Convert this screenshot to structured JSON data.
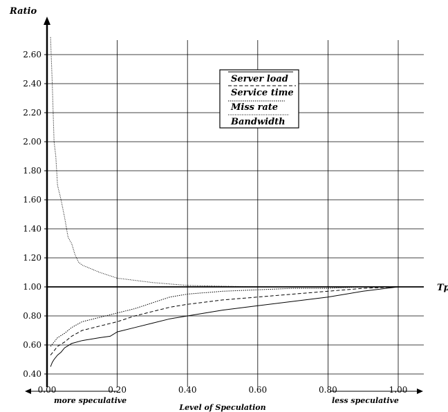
{
  "chart_data": {
    "type": "line",
    "title": "",
    "xlabel": "Level of Speculation",
    "ylabel": "Ratio",
    "x_axis_end_label": "Tp",
    "xlim": [
      0.0,
      1.0
    ],
    "ylim": [
      0.4,
      2.7
    ],
    "x_ticks": [
      "0.00",
      "0.20",
      "0.40",
      "0.60",
      "0.80",
      "1.00"
    ],
    "y_ticks": [
      "0.40",
      "0.60",
      "0.80",
      "1.00",
      "1.20",
      "1.40",
      "1.60",
      "1.80",
      "2.00",
      "2.20",
      "2.40",
      "2.60"
    ],
    "grid": true,
    "legend_position": "top-right",
    "annotations": {
      "left": "more speculative",
      "right": "less speculative"
    },
    "series": [
      {
        "name": "Server load",
        "style": "solid",
        "x": [
          0.01,
          0.015,
          0.02,
          0.03,
          0.04,
          0.05,
          0.07,
          0.1,
          0.15,
          0.18,
          0.2,
          0.25,
          0.3,
          0.35,
          0.4,
          0.5,
          0.6,
          0.7,
          0.8,
          0.9,
          1.0
        ],
        "y": [
          0.45,
          0.48,
          0.5,
          0.53,
          0.55,
          0.58,
          0.61,
          0.63,
          0.65,
          0.66,
          0.69,
          0.72,
          0.75,
          0.78,
          0.8,
          0.84,
          0.87,
          0.9,
          0.93,
          0.97,
          1.0
        ]
      },
      {
        "name": "Service time",
        "style": "dashed",
        "x": [
          0.01,
          0.02,
          0.03,
          0.05,
          0.07,
          0.1,
          0.15,
          0.2,
          0.25,
          0.3,
          0.35,
          0.4,
          0.5,
          0.6,
          0.7,
          0.8,
          0.9,
          1.0
        ],
        "y": [
          0.53,
          0.56,
          0.59,
          0.62,
          0.66,
          0.7,
          0.73,
          0.76,
          0.8,
          0.83,
          0.86,
          0.88,
          0.91,
          0.93,
          0.95,
          0.97,
          0.99,
          1.0
        ]
      },
      {
        "name": "Miss rate",
        "style": "dotted",
        "x": [
          0.01,
          0.02,
          0.03,
          0.05,
          0.07,
          0.1,
          0.15,
          0.2,
          0.25,
          0.3,
          0.35,
          0.4,
          0.5,
          0.6,
          0.7,
          0.8,
          0.9,
          1.0
        ],
        "y": [
          0.59,
          0.62,
          0.65,
          0.68,
          0.72,
          0.76,
          0.79,
          0.82,
          0.85,
          0.89,
          0.93,
          0.95,
          0.97,
          0.98,
          0.99,
          0.99,
          1.0,
          1.0
        ]
      },
      {
        "name": "Bandwidth",
        "style": "dotted",
        "x": [
          0.01,
          0.015,
          0.02,
          0.025,
          0.03,
          0.04,
          0.05,
          0.06,
          0.07,
          0.08,
          0.09,
          0.1,
          0.15,
          0.2,
          0.3,
          0.4,
          0.5,
          0.6,
          0.8,
          1.0
        ],
        "y": [
          2.72,
          2.4,
          2.0,
          1.9,
          1.7,
          1.6,
          1.48,
          1.34,
          1.3,
          1.22,
          1.17,
          1.15,
          1.1,
          1.06,
          1.03,
          1.01,
          1.005,
          1.0,
          1.0,
          1.0
        ]
      }
    ]
  }
}
